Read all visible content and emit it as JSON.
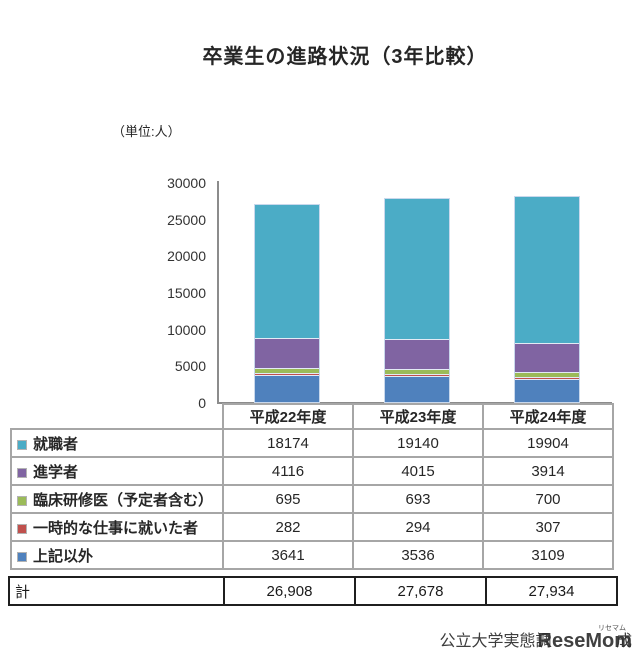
{
  "title": "卒業生の進路状況（3年比較）",
  "unit_label": "（単位:人）",
  "source": {
    "text_left": "公立大学実態調",
    "text_right": "成",
    "watermark": "ReseMom",
    "watermark_ruby": "リセマム"
  },
  "chart_data": {
    "type": "bar",
    "stacked": true,
    "title": "卒業生の進路状況（3年比較）",
    "unit": "人",
    "categories": [
      "平成22年度",
      "平成23年度",
      "平成24年度"
    ],
    "series": [
      {
        "name": "就職者",
        "color": "#4bacc6",
        "values": [
          18174,
          19140,
          19904
        ]
      },
      {
        "name": "進学者",
        "color": "#8064a2",
        "values": [
          4116,
          4015,
          3914
        ]
      },
      {
        "name": "臨床研修医（予定者含む）",
        "color": "#9bbb59",
        "values": [
          695,
          693,
          700
        ]
      },
      {
        "name": "一時的な仕事に就いた者",
        "color": "#c0504d",
        "values": [
          282,
          294,
          307
        ]
      },
      {
        "name": "上記以外",
        "color": "#4f81bd",
        "values": [
          3641,
          3536,
          3109
        ]
      }
    ],
    "totals_row": {
      "label": "計",
      "values": [
        "26,908",
        "27,678",
        "27,934"
      ]
    },
    "ylim": [
      0,
      30000
    ],
    "yticks": [
      0,
      5000,
      10000,
      15000,
      20000,
      25000,
      30000
    ],
    "grid": false,
    "legend_position": "table-left-column"
  }
}
